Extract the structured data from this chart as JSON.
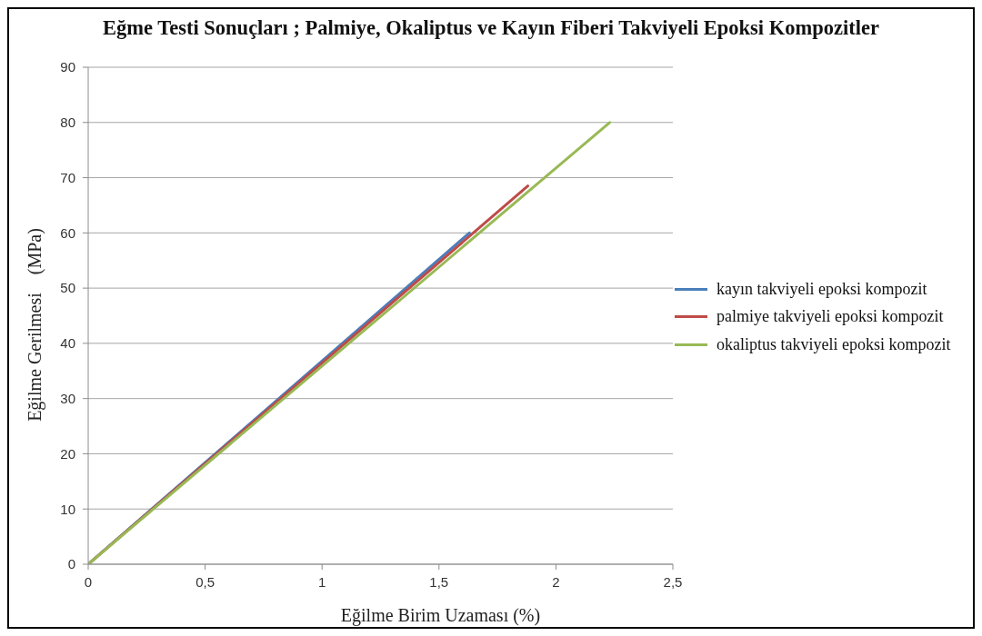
{
  "chart_data": {
    "type": "line",
    "title": "Eğme Testi Sonuçları ; Palmiye, Okaliptus ve Kayın Fiberi Takviyeli Epoksi Kompozitler",
    "xlabel": "Eğilme Birim Uzaması (%)",
    "ylabel": "Eğilme Gerilmesi    (MPa)",
    "series": [
      {
        "name": "kayın takviyeli epoksi kompozit",
        "color": "#4a7ebb",
        "x": [
          0,
          1.63
        ],
        "values": [
          0,
          60
        ]
      },
      {
        "name": "palmiye takviyeli epoksi kompozit",
        "color": "#be4b48",
        "x": [
          0,
          1.88
        ],
        "values": [
          0,
          68.5
        ]
      },
      {
        "name": "okaliptus takviyeli epoksi kompozit",
        "color": "#98b954",
        "x": [
          0,
          2.23
        ],
        "values": [
          0,
          80
        ]
      }
    ],
    "xlim": [
      0,
      2.5
    ],
    "xticks": [
      0,
      {
        "value": 0.5,
        "label": "0,5"
      },
      1,
      {
        "value": 1.5,
        "label": "1,5"
      },
      2,
      {
        "value": 2.5,
        "label": "2,5"
      }
    ],
    "ylim": [
      0,
      90
    ],
    "yticks": [
      0,
      10,
      20,
      30,
      40,
      50,
      60,
      70,
      80,
      90
    ],
    "grid": "y",
    "legend": "right"
  }
}
